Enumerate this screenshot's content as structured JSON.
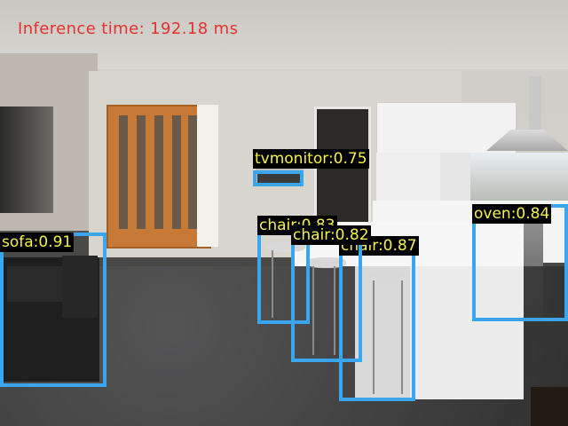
{
  "overlay": {
    "inference_label": "Inference time: 192.18 ms",
    "box_color": "#3aa6f0",
    "label_text_color": "#f5f24a",
    "inference_text_color": "#e8302e"
  },
  "detections": [
    {
      "label": "sofa:0.91"
    },
    {
      "label": "tvmonitor:0.75"
    },
    {
      "label": "chair:0.83"
    },
    {
      "label": "chair:0.82"
    },
    {
      "label": "chair:0.87"
    },
    {
      "label": "oven:0.84"
    }
  ]
}
